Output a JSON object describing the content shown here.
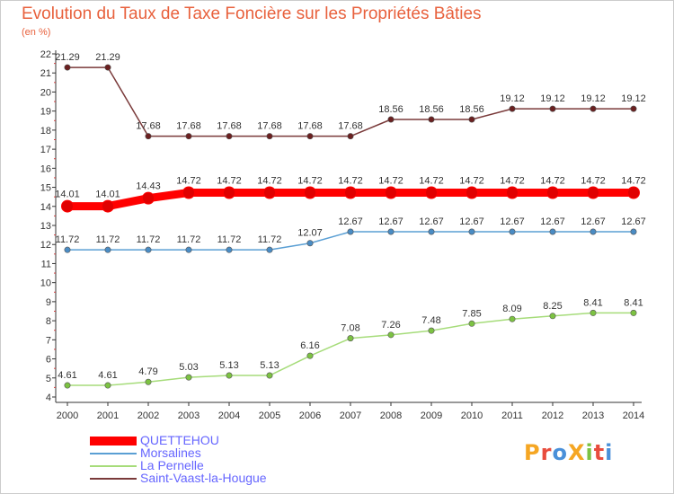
{
  "header": {
    "title": "Evolution du Taux de Taxe Foncière sur les Propriétés Bâties",
    "subtitle": "(en %)"
  },
  "logo": {
    "text": "ProXiti",
    "colors": [
      "#f5a623",
      "#e84c3d",
      "#4a90d9",
      "#f5a623",
      "#7cc242",
      "#e84c3d",
      "#4a90d9"
    ]
  },
  "chart_data": {
    "type": "line",
    "title": "Evolution du Taux de Taxe Foncière sur les Propriétés Bâties",
    "ylabel": "(en %)",
    "xlabel": "",
    "x": [
      "2000",
      "2001",
      "2002",
      "2003",
      "2004",
      "2005",
      "2006",
      "2007",
      "2008",
      "2009",
      "2010",
      "2011",
      "2012",
      "2013",
      "2014"
    ],
    "ylim": [
      4,
      22
    ],
    "yticks": [
      "4",
      "5",
      "6",
      "7",
      "8",
      "9",
      "10",
      "11",
      "12",
      "13",
      "14",
      "15",
      "16",
      "17",
      "18",
      "19",
      "20",
      "21",
      "22"
    ],
    "grid": false,
    "legend_position": "bottom-left",
    "series": [
      {
        "name": "QUETTEHOU",
        "color": "#ff0000",
        "marker_color": "#e00000",
        "thick": true,
        "values": [
          14.01,
          14.01,
          14.43,
          14.72,
          14.72,
          14.72,
          14.72,
          14.72,
          14.72,
          14.72,
          14.72,
          14.72,
          14.72,
          14.72,
          14.72
        ],
        "labels": [
          "14.01",
          "14.01",
          "14.43",
          "14.72",
          "14.72",
          "14.72",
          "14.72",
          "14.72",
          "14.72",
          "14.72",
          "14.72",
          "14.72",
          "14.72",
          "14.72",
          "14.72"
        ]
      },
      {
        "name": "Morsalines",
        "color": "#5a9fd4",
        "marker_color": "#4a8cc4",
        "thick": false,
        "values": [
          11.72,
          11.72,
          11.72,
          11.72,
          11.72,
          11.72,
          12.07,
          12.67,
          12.67,
          12.67,
          12.67,
          12.67,
          12.67,
          12.67,
          12.67
        ],
        "labels": [
          "11.72",
          "11.72",
          "11.72",
          "11.72",
          "11.72",
          "11.72",
          "12.07",
          "12.67",
          "12.67",
          "12.67",
          "12.67",
          "12.67",
          "12.67",
          "12.67",
          "12.67"
        ]
      },
      {
        "name": "La Pernelle",
        "color": "#a6dc7a",
        "marker_color": "#7cc242",
        "thick": false,
        "values": [
          4.61,
          4.61,
          4.79,
          5.03,
          5.13,
          5.13,
          6.16,
          7.08,
          7.26,
          7.48,
          7.85,
          8.09,
          8.25,
          8.41,
          8.41
        ],
        "labels": [
          "4.61",
          "4.61",
          "4.79",
          "5.03",
          "5.13",
          "5.13",
          "6.16",
          "7.08",
          "7.26",
          "7.48",
          "7.85",
          "8.09",
          "8.25",
          "8.41",
          "8.41"
        ]
      },
      {
        "name": "Saint-Vaast-la-Hougue",
        "color": "#7a3a3a",
        "marker_color": "#6b2020",
        "thick": false,
        "values": [
          21.29,
          21.29,
          17.68,
          17.68,
          17.68,
          17.68,
          17.68,
          17.68,
          18.56,
          18.56,
          18.56,
          19.12,
          19.12,
          19.12,
          19.12
        ],
        "labels": [
          "21.29",
          "21.29",
          "17.68",
          "17.68",
          "17.68",
          "17.68",
          "17.68",
          "17.68",
          "18.56",
          "18.56",
          "18.56",
          "19.12",
          "19.12",
          "19.12",
          "19.12"
        ]
      }
    ]
  }
}
